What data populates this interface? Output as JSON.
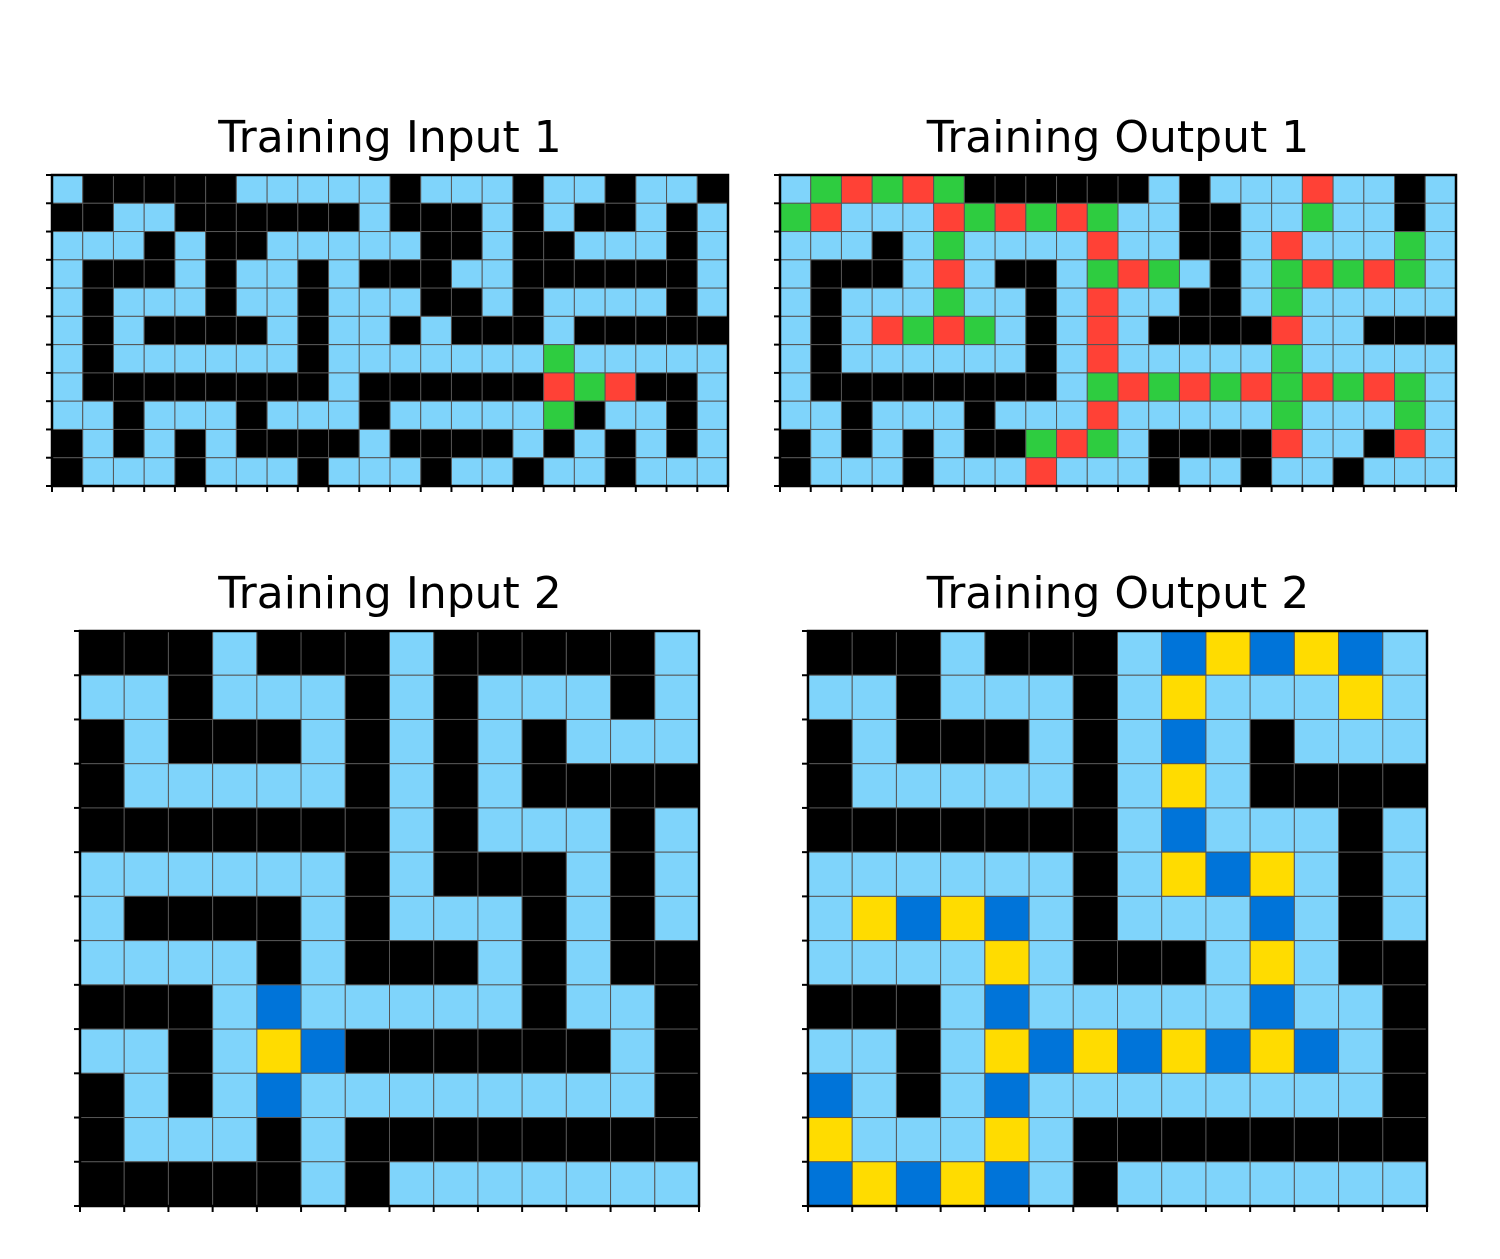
{
  "palette": {
    "0": "#000000",
    "1": "#7fd4fb",
    "2": "#2ecc40",
    "3": "#ff4136",
    "4": "#0074d9",
    "5": "#ffdc00"
  },
  "panels": [
    {
      "title": "Training Input 1",
      "grid": [
        "1000001111101110110110",
        "0011000000100010100101",
        "1110100111110010011101",
        "1000101101000110000001",
        "1011101101110010111101",
        "1010000101101000100000",
        "1011111101111111211111",
        "1000000001000000323001",
        "1101110111011111201101",
        "0101010000100001010101",
        "0111011101110110110111"
      ]
    },
    {
      "title": "Training Output 1",
      "grid": [
        "1232320000001011131101",
        "2311132323211001121101",
        "1110121111311001311121",
        "1000131001232101232321",
        "1011121101311001211111",
        "1013232101310000311000",
        "1011111101311111211111",
        "1000000001232323232321",
        "1101110111311111211121",
        "0101010023210000311031",
        "0111011131110110110111"
      ]
    },
    {
      "title": "Training Input 2",
      "grid": [
        "00010001000001",
        "11011101011101",
        "01000101010111",
        "01111101010000",
        "00000001011101",
        "11111101000101",
        "10000101110101",
        "11110100010100",
        "00014111110110",
        "11015400000010",
        "01014111111110",
        "01110100000000",
        "00000101111111"
      ]
    },
    {
      "title": "Training Output 2",
      "grid": [
        "00010001454541",
        "11011101511151",
        "01000101410111",
        "01111101510000",
        "00000001411101",
        "11111101545101",
        "15454101114101",
        "11115100015100",
        "00014111114110",
        "11015454545410",
        "41014111111110",
        "51115100000000",
        "45454101111111"
      ]
    }
  ]
}
